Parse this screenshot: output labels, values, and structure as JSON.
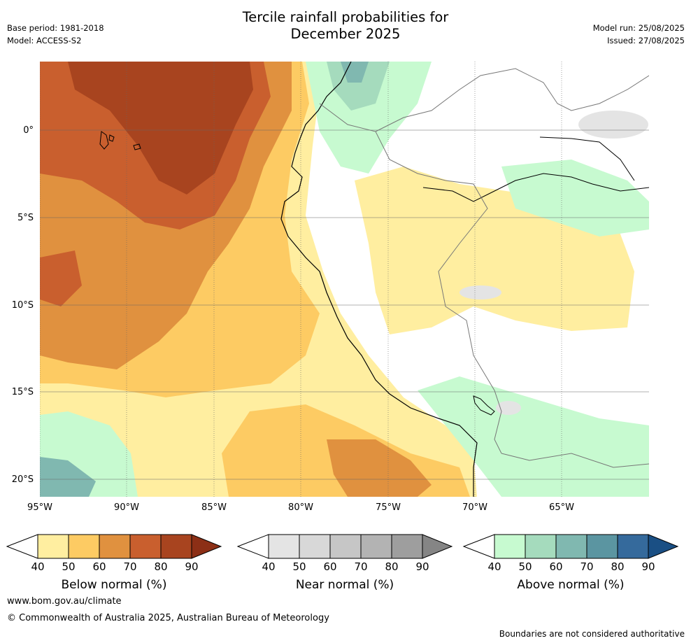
{
  "header": {
    "title_line1": "Tercile rainfall probabilities for",
    "title_line2": "December 2025",
    "base_period": "Base period: 1981-2018",
    "model": "Model: ACCESS-S2",
    "model_run": "Model run: 25/08/2025",
    "issued": "Issued: 27/08/2025"
  },
  "map": {
    "lat_labels": [
      "0°",
      "5°S",
      "10°S",
      "15°S",
      "20°S"
    ],
    "lon_labels": [
      "95°W",
      "90°W",
      "85°W",
      "80°W",
      "75°W",
      "70°W",
      "65°W"
    ],
    "legend_colors": {
      "below": [
        "#ffeea0",
        "#fdcb63",
        "#e0913f",
        "#c95f2e",
        "#a8441f",
        "#8c2f16"
      ],
      "near": [
        "#e4e4e4",
        "#d8d8d8",
        "#c6c6c6",
        "#b3b3b3",
        "#9e9e9e",
        "#858585"
      ],
      "above": [
        "#c7fad0",
        "#a5dbbd",
        "#80b8b0",
        "#5b95a1",
        "#356a9c",
        "#1a4f84"
      ]
    }
  },
  "colorbars": [
    {
      "name": "below",
      "title": "Below normal (%)",
      "ticks": [
        "40",
        "50",
        "60",
        "70",
        "80",
        "90"
      ]
    },
    {
      "name": "near",
      "title": "Near normal (%)",
      "ticks": [
        "40",
        "50",
        "60",
        "70",
        "80",
        "90"
      ]
    },
    {
      "name": "above",
      "title": "Above normal (%)",
      "ticks": [
        "40",
        "50",
        "60",
        "70",
        "80",
        "90"
      ]
    }
  ],
  "footer": {
    "url": "www.bom.gov.au/climate",
    "copyright": "© Commonwealth of Australia 2025, Australian Bureau of Meteorology",
    "disclaimer": "Boundaries are not considered authoritative"
  }
}
